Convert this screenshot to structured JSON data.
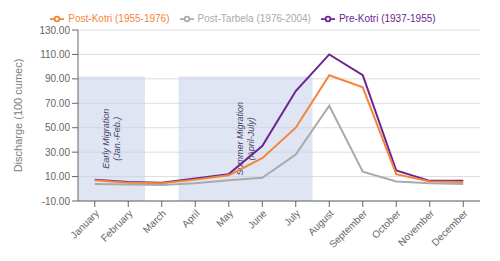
{
  "chart_data": {
    "type": "line",
    "categories": [
      "January",
      "February",
      "March",
      "April",
      "May",
      "June",
      "July",
      "August",
      "September",
      "October",
      "November",
      "December"
    ],
    "series": [
      {
        "name": "Pre-Kotri (1937-1955)",
        "color": "#6B2590",
        "values": [
          7.5,
          5.5,
          5.0,
          8.5,
          12.0,
          35.0,
          80.0,
          110.0,
          93.0,
          15.0,
          6.5,
          6.5
        ]
      },
      {
        "name": "Post-Kotri (1955-1976)",
        "color": "#F4843A",
        "values": [
          7.0,
          5.0,
          4.5,
          7.5,
          11.0,
          25.0,
          50.0,
          93.0,
          83.0,
          12.0,
          6.0,
          5.5
        ]
      },
      {
        "name": "Post-Tarbela (1976-2004)",
        "color": "#AAAAAA",
        "values": [
          4.0,
          3.5,
          3.0,
          4.5,
          7.0,
          9.0,
          28.0,
          68.0,
          14.0,
          6.0,
          4.5,
          4.0
        ]
      }
    ],
    "ylim": [
      -10,
      130
    ],
    "yticks": [
      {
        "value": -10,
        "label": "-10.00"
      },
      {
        "value": 10,
        "label": "10.00"
      },
      {
        "value": 30,
        "label": "30.00"
      },
      {
        "value": 50,
        "label": "50.00"
      },
      {
        "value": 70,
        "label": "70.00"
      },
      {
        "value": 90,
        "label": "90.00"
      },
      {
        "value": 110,
        "label": "110.00"
      },
      {
        "value": 130,
        "label": "130.00"
      }
    ],
    "ylabel": "Discharge (100 cumec)",
    "grid": true,
    "legend": "top",
    "shaded_regions": [
      {
        "from": "January",
        "to": "February",
        "top": 92,
        "color": "#c5d0e8",
        "label": "Early Migration\n(Jan.-Feb.)"
      },
      {
        "from": "April",
        "to": "July",
        "top": 92,
        "color": "#c5d0e8",
        "label": "Summer Migration\n(April-July)"
      }
    ]
  }
}
